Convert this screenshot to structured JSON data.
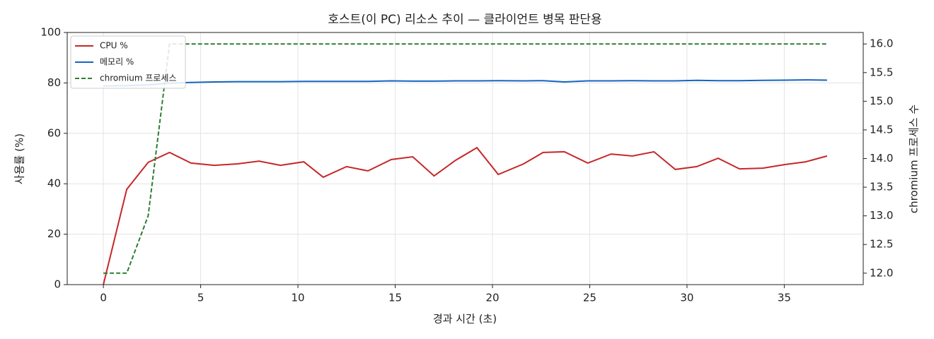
{
  "chart_data": {
    "type": "line",
    "title": "호스트(이 PC) 리소스 추이 — 클라이언트 병목 판단용",
    "xlabel": "경과 시간 (초)",
    "ylabel": "사용률 (%)",
    "y2label": "chromium 프로세스 수",
    "x": [
      0,
      1.2,
      2.3,
      3.4,
      4.5,
      5.7,
      6.9,
      8.0,
      9.1,
      10.3,
      11.3,
      12.5,
      13.6,
      14.8,
      15.9,
      17.0,
      18.1,
      19.2,
      20.3,
      21.6,
      22.6,
      23.7,
      24.9,
      26.1,
      27.2,
      28.3,
      29.4,
      30.5,
      31.6,
      32.7,
      33.9,
      35.0,
      36.1,
      37.2
    ],
    "series": [
      {
        "name": "CPU %",
        "color": "#c62828",
        "dashed": false,
        "values": [
          0,
          37.8,
          48.5,
          52.4,
          48.2,
          47.3,
          47.9,
          49.0,
          47.3,
          48.7,
          42.6,
          46.8,
          45.1,
          49.6,
          50.7,
          43.1,
          49.3,
          54.3,
          43.7,
          47.9,
          52.4,
          52.7,
          48.2,
          51.8,
          51.0,
          52.7,
          45.7,
          46.8,
          50.1,
          45.9,
          46.2,
          47.6,
          48.7,
          51.0
        ]
      },
      {
        "name": "메모리 %",
        "color": "#1565c0",
        "dashed": false,
        "values": [
          78.8,
          78.9,
          79.2,
          79.9,
          80.2,
          80.4,
          80.5,
          80.5,
          80.5,
          80.6,
          80.6,
          80.6,
          80.6,
          80.8,
          80.7,
          80.7,
          80.8,
          80.8,
          80.9,
          80.8,
          80.9,
          80.4,
          80.8,
          80.8,
          80.9,
          80.8,
          80.8,
          81.0,
          80.9,
          80.9,
          81.0,
          81.1,
          81.2,
          81.1
        ]
      },
      {
        "name": "chromium 프로세스",
        "color": "#2e7d32",
        "dashed": true,
        "axis": "y2",
        "values": [
          12,
          12,
          13,
          16,
          16,
          16,
          16,
          16,
          16,
          16,
          16,
          16,
          16,
          16,
          16,
          16,
          16,
          16,
          16,
          16,
          16,
          16,
          16,
          16,
          16,
          16,
          16,
          16,
          16,
          16,
          16,
          16,
          16,
          16
        ]
      }
    ],
    "xlim": [
      -1.86,
      39.06
    ],
    "xticks": [
      0,
      5,
      10,
      15,
      20,
      25,
      30,
      35
    ],
    "ylim": [
      0,
      100
    ],
    "yticks": [
      0,
      20,
      40,
      60,
      80,
      100
    ],
    "y2lim": [
      11.8,
      16.2
    ],
    "y2ticks": [
      {
        "value": 12,
        "label": "12.0"
      },
      12.5,
      {
        "value": 13,
        "label": "13.0"
      },
      13.5,
      {
        "value": 14,
        "label": "14.0"
      },
      14.5,
      {
        "value": 15,
        "label": "15.0"
      },
      15.5,
      {
        "value": 16,
        "label": "16.0"
      }
    ],
    "grid": true,
    "legend": "upper left"
  }
}
